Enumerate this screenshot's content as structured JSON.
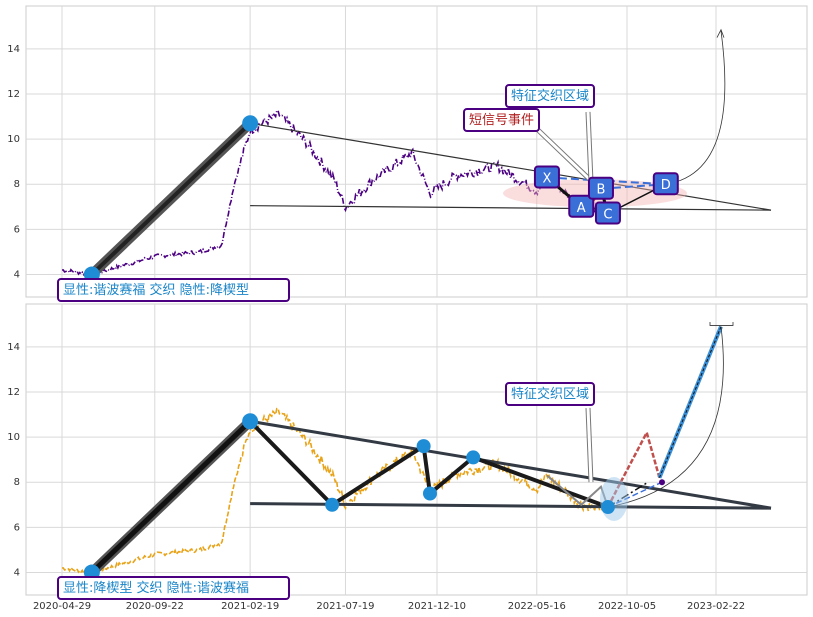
{
  "chart_data": [
    {
      "type": "line",
      "x_ticks": [
        "2020-04-29",
        "2020-09-22",
        "2021-02-19",
        "2021-07-19",
        "2021-12-10",
        "2022-05-16",
        "2022-10-05",
        "2023-02-22"
      ],
      "y_ticks": [
        4,
        6,
        8,
        10,
        12,
        14
      ],
      "ylim": [
        3.0,
        15.9
      ],
      "grid": true,
      "series_color": "#4b0082",
      "annotations": {
        "pattern_text": "显性:谐波赛福 交织 隐性:降楔型",
        "region_text": "特征交织区域",
        "signal_text": "短信号事件"
      },
      "harmonic_points": [
        {
          "label": "X",
          "x": "2022-06-01",
          "y": 8.3
        },
        {
          "label": "A",
          "x": "2022-07-25",
          "y": 7.0
        },
        {
          "label": "B",
          "x": "2022-08-25",
          "y": 7.8
        },
        {
          "label": "C",
          "x": "2022-09-05",
          "y": 6.7
        },
        {
          "label": "D",
          "x": "2022-12-05",
          "y": 8.0
        }
      ],
      "colors": {
        "price": "#4b0082",
        "box": "#4b0082",
        "label_bg": "#3b6fd8",
        "pattern_text": "#1a85c8",
        "signal_text": "#b22222"
      }
    },
    {
      "type": "line",
      "x_ticks": [
        "2020-04-29",
        "2020-09-22",
        "2021-02-19",
        "2021-07-19",
        "2021-12-10",
        "2022-05-16",
        "2022-10-05",
        "2023-02-22"
      ],
      "y_ticks": [
        4,
        6,
        8,
        10,
        12,
        14
      ],
      "ylim": [
        3.0,
        15.9
      ],
      "grid": true,
      "series_color": "#e8a317",
      "annotations": {
        "pattern_text": "显性:降楔型 交织 隐性:谐波赛福",
        "region_text": "特征交织区域"
      },
      "wedge_points": [
        {
          "x": "2020-06-15",
          "y": 4.0
        },
        {
          "x": "2021-02-19",
          "y": 10.7
        },
        {
          "x": "2021-06-28",
          "y": 7.0
        },
        {
          "x": "2021-11-19",
          "y": 9.6
        },
        {
          "x": "2021-11-29",
          "y": 7.5
        },
        {
          "x": "2022-02-05",
          "y": 9.1
        },
        {
          "x": "2022-09-05",
          "y": 6.9
        }
      ],
      "colors": {
        "price": "#e8a317",
        "zigzag": "#1a1a1a",
        "nodes": "#1f8dd6",
        "target": "#3a8fd6"
      }
    }
  ],
  "x_axis_labels": [
    "2020-04-29",
    "2020-09-22",
    "2021-02-19",
    "2021-07-19",
    "2021-12-10",
    "2022-05-16",
    "2022-10-05",
    "2023-02-22"
  ]
}
